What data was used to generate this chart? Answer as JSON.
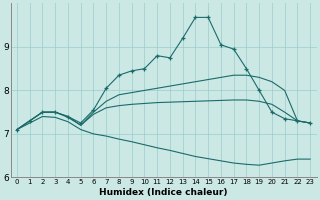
{
  "title": "",
  "xlabel": "Humidex (Indice chaleur)",
  "background_color": "#cce8e4",
  "grid_color": "#99cccc",
  "line_color": "#1a6b6b",
  "xlim": [
    -0.5,
    23.5
  ],
  "ylim": [
    6.0,
    10.0
  ],
  "xticks": [
    0,
    1,
    2,
    3,
    4,
    5,
    6,
    7,
    8,
    9,
    10,
    11,
    12,
    13,
    14,
    15,
    16,
    17,
    18,
    19,
    20,
    21,
    22,
    23
  ],
  "yticks": [
    6,
    7,
    8,
    9
  ],
  "series": [
    {
      "x": [
        0,
        1,
        2,
        3,
        4,
        5,
        6,
        7,
        8,
        9,
        10,
        11,
        12,
        13,
        14,
        15,
        16,
        17,
        18,
        19,
        20,
        21,
        22,
        23
      ],
      "y": [
        7.1,
        7.3,
        7.5,
        7.5,
        7.4,
        7.25,
        7.55,
        8.05,
        8.35,
        8.45,
        8.5,
        8.8,
        8.75,
        9.2,
        9.68,
        9.68,
        9.05,
        8.95,
        8.5,
        8.0,
        7.5,
        7.35,
        7.3,
        7.25
      ],
      "marker": true
    },
    {
      "x": [
        0,
        1,
        2,
        3,
        4,
        5,
        6,
        7,
        8,
        9,
        10,
        11,
        12,
        13,
        14,
        15,
        16,
        17,
        18,
        19,
        20,
        21,
        22,
        23
      ],
      "y": [
        7.1,
        7.3,
        7.5,
        7.5,
        7.4,
        7.2,
        7.5,
        7.75,
        7.9,
        7.95,
        8.0,
        8.05,
        8.1,
        8.15,
        8.2,
        8.25,
        8.3,
        8.35,
        8.35,
        8.3,
        8.2,
        8.0,
        7.3,
        7.25
      ],
      "marker": false
    },
    {
      "x": [
        0,
        1,
        2,
        3,
        4,
        5,
        6,
        7,
        8,
        9,
        10,
        11,
        12,
        13,
        14,
        15,
        16,
        17,
        18,
        19,
        20,
        21,
        22,
        23
      ],
      "y": [
        7.1,
        7.3,
        7.5,
        7.5,
        7.38,
        7.2,
        7.45,
        7.6,
        7.65,
        7.68,
        7.7,
        7.72,
        7.73,
        7.74,
        7.75,
        7.76,
        7.77,
        7.78,
        7.78,
        7.75,
        7.68,
        7.5,
        7.3,
        7.25
      ],
      "marker": false
    },
    {
      "x": [
        0,
        1,
        2,
        3,
        4,
        5,
        6,
        7,
        8,
        9,
        10,
        11,
        12,
        13,
        14,
        15,
        16,
        17,
        18,
        19,
        20,
        21,
        22,
        23
      ],
      "y": [
        7.1,
        7.25,
        7.4,
        7.38,
        7.28,
        7.1,
        7.0,
        6.95,
        6.88,
        6.82,
        6.75,
        6.68,
        6.62,
        6.55,
        6.48,
        6.43,
        6.38,
        6.33,
        6.3,
        6.28,
        6.33,
        6.38,
        6.42,
        6.42
      ],
      "marker": false
    }
  ]
}
